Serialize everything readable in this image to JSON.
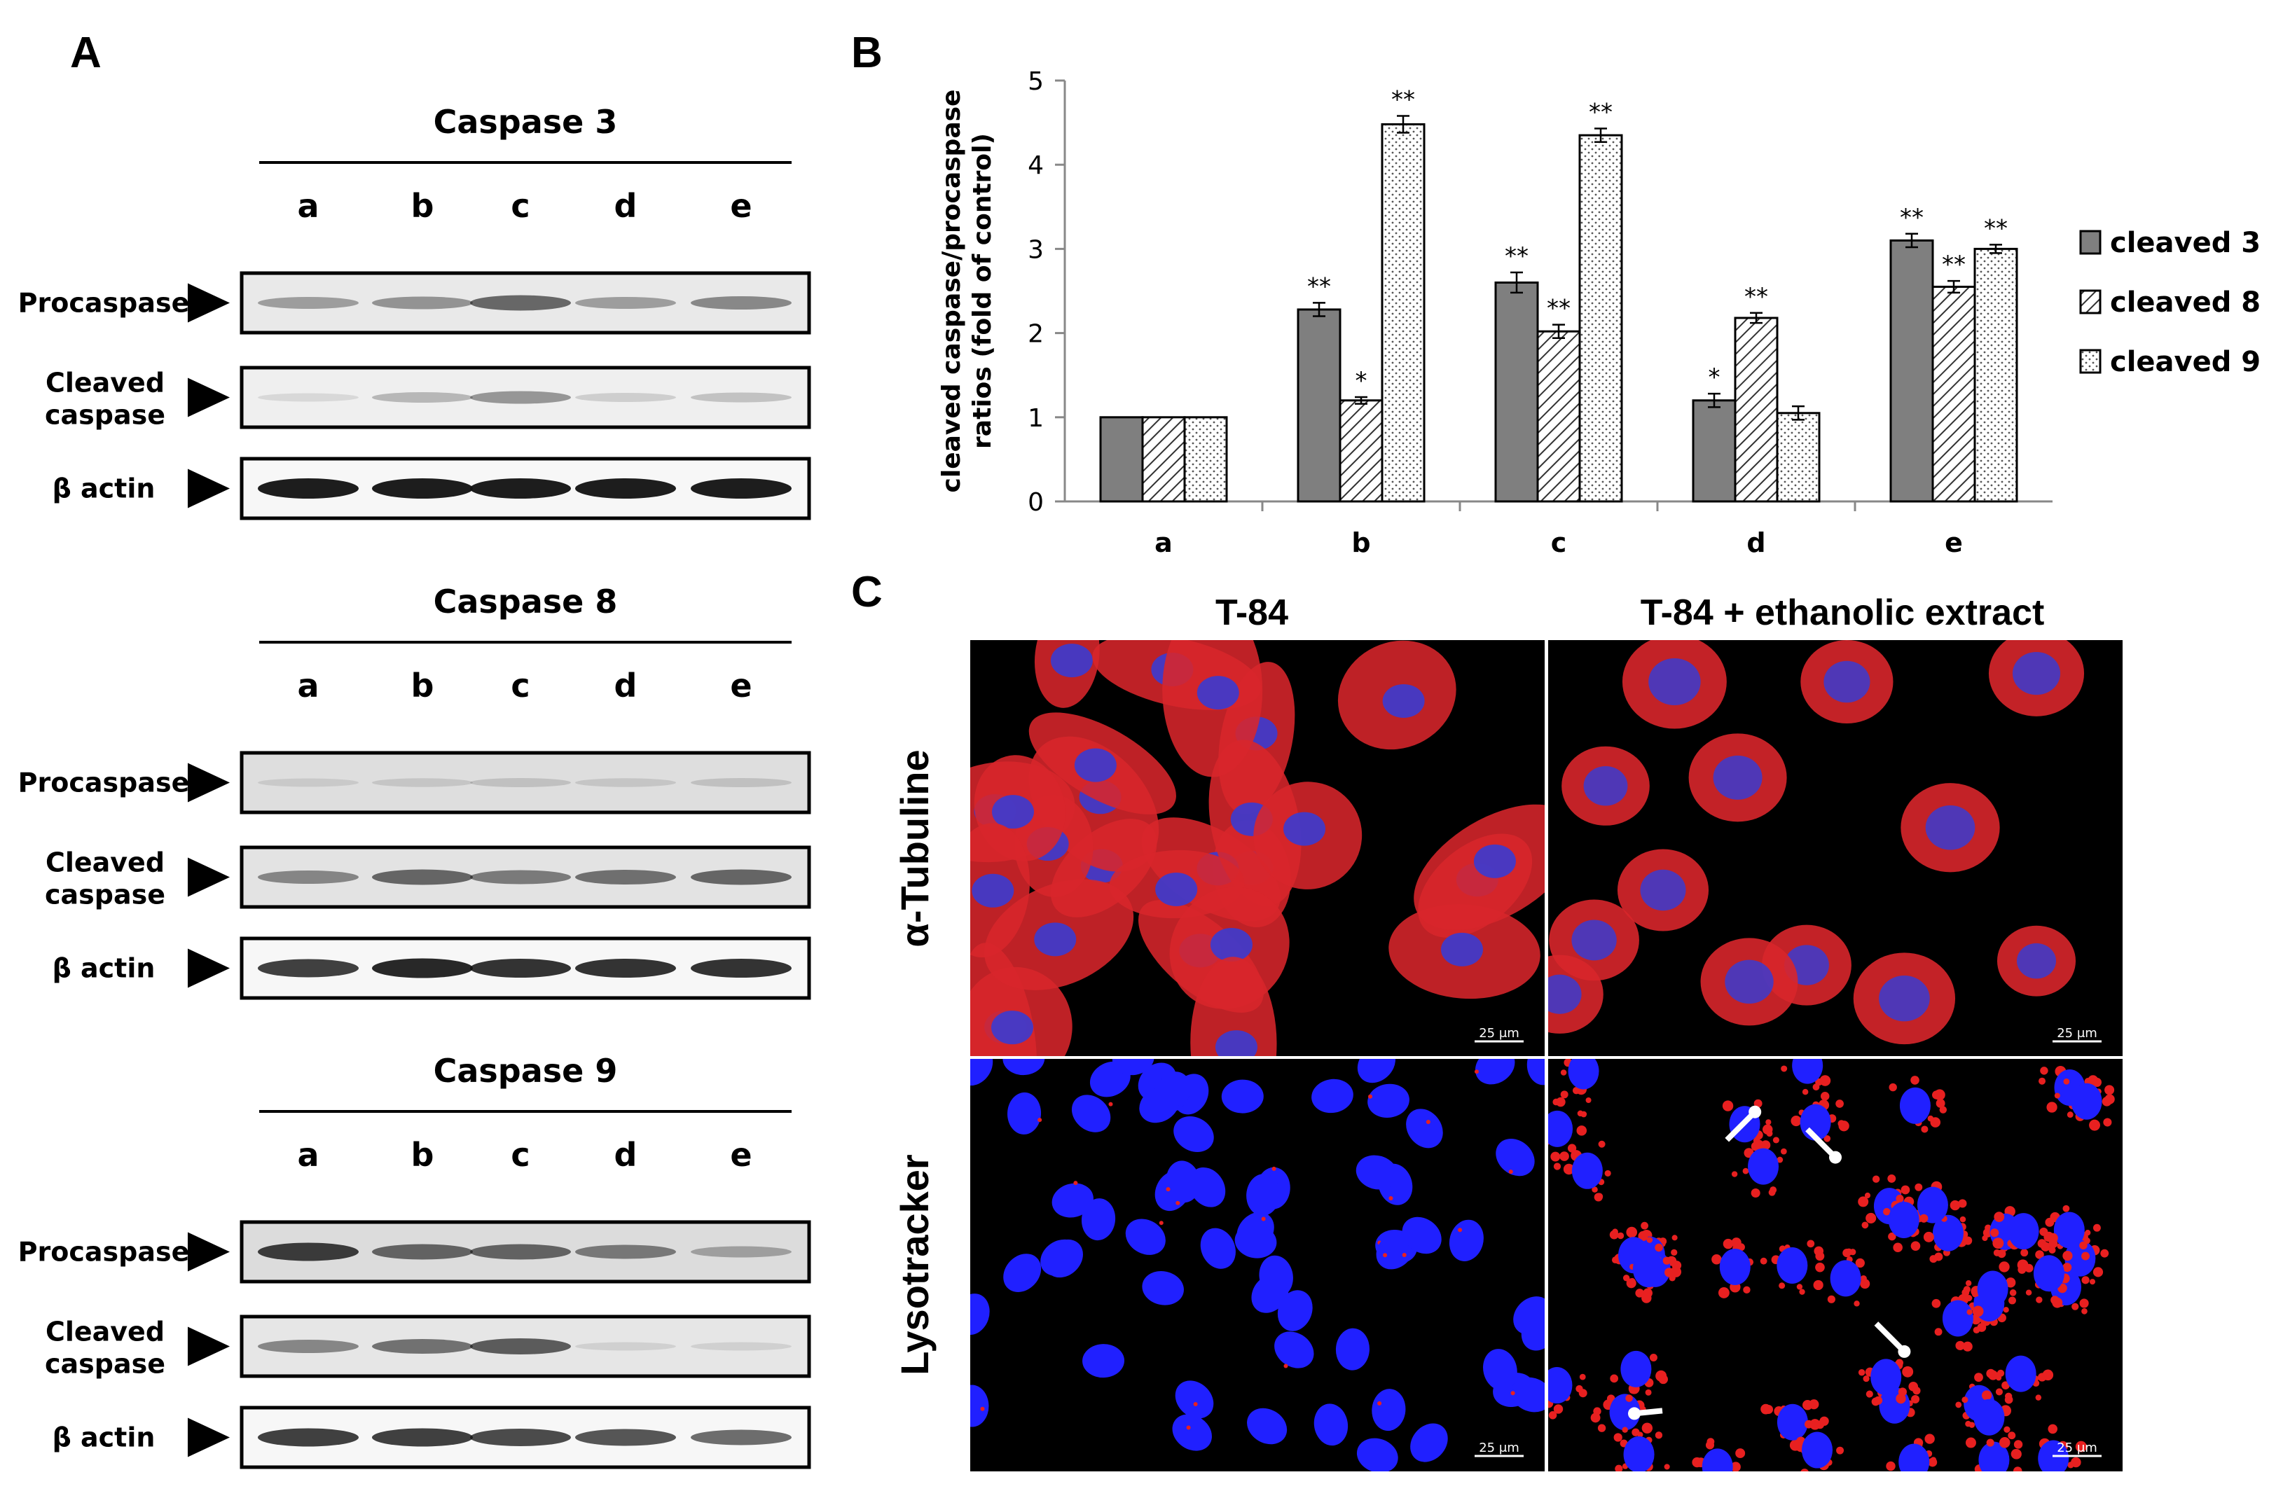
{
  "panels": {
    "a_letter": "A",
    "b_letter": "B",
    "c_letter": "C"
  },
  "blots": [
    {
      "title": "Caspase 3",
      "lanes": [
        "a",
        "b",
        "c",
        "d",
        "e"
      ],
      "rows": [
        {
          "label": "Procaspase",
          "intensity": [
            0.35,
            0.4,
            0.6,
            0.35,
            0.45
          ],
          "bg": "#e9e9e9"
        },
        {
          "label": "Cleaved caspase",
          "intensity": [
            0.1,
            0.25,
            0.4,
            0.15,
            0.2
          ],
          "bg": "#efefef"
        },
        {
          "label": "β actin",
          "intensity": [
            0.95,
            0.95,
            0.95,
            0.95,
            0.95
          ],
          "bg": "#f7f7f7"
        }
      ]
    },
    {
      "title": "Caspase 8",
      "lanes": [
        "a",
        "b",
        "c",
        "d",
        "e"
      ],
      "rows": [
        {
          "label": "Procaspase",
          "intensity": [
            0.1,
            0.12,
            0.15,
            0.12,
            0.15
          ],
          "bg": "#dedede"
        },
        {
          "label": "Cleaved caspase",
          "intensity": [
            0.45,
            0.6,
            0.5,
            0.55,
            0.6
          ],
          "bg": "#e3e3e3"
        },
        {
          "label": "β actin",
          "intensity": [
            0.8,
            0.9,
            0.85,
            0.85,
            0.85
          ],
          "bg": "#f7f7f7"
        }
      ]
    },
    {
      "title": "Caspase 9",
      "lanes": [
        "a",
        "b",
        "c",
        "d",
        "e"
      ],
      "rows": [
        {
          "label": "Procaspase",
          "intensity": [
            0.8,
            0.6,
            0.6,
            0.5,
            0.3
          ],
          "bg": "#dcdcdc"
        },
        {
          "label": "Cleaved caspase",
          "intensity": [
            0.45,
            0.55,
            0.65,
            0.1,
            0.1
          ],
          "bg": "#e6e6e6"
        },
        {
          "label": "β actin",
          "intensity": [
            0.8,
            0.8,
            0.75,
            0.7,
            0.6
          ],
          "bg": "#f7f7f7"
        }
      ]
    }
  ],
  "chart_data": {
    "type": "bar",
    "categories": [
      "a",
      "b",
      "c",
      "d",
      "e"
    ],
    "ylabel": "cleaved caspase/procaspase ratios (fold of control)",
    "ylim": [
      0,
      5
    ],
    "yticks": [
      0,
      1,
      2,
      3,
      4,
      5
    ],
    "series": [
      {
        "name": "cleaved 3",
        "values": [
          1.0,
          2.28,
          2.6,
          1.2,
          3.1
        ],
        "errors": [
          0,
          0.08,
          0.12,
          0.08,
          0.08
        ],
        "sig": [
          "",
          "**",
          "**",
          "*",
          "**"
        ],
        "fill": "#7f7f7f"
      },
      {
        "name": "cleaved 8",
        "values": [
          1.0,
          1.2,
          2.02,
          2.18,
          2.55
        ],
        "errors": [
          0,
          0.04,
          0.08,
          0.06,
          0.07
        ],
        "sig": [
          "",
          "*",
          "**",
          "**",
          "**"
        ],
        "fill": "hatch"
      },
      {
        "name": "cleaved 9",
        "values": [
          1.0,
          4.48,
          4.35,
          1.05,
          3.0
        ],
        "errors": [
          0,
          0.1,
          0.08,
          0.08,
          0.05
        ],
        "sig": [
          "",
          "**",
          "**",
          "",
          "**"
        ],
        "fill": "dots"
      }
    ],
    "legend_position": "right"
  },
  "micrographs": {
    "col_titles": [
      "T-84",
      "T-84 + ethanolic extract"
    ],
    "row_labels": [
      "α-Tubuline",
      "Lysotracker"
    ],
    "scale_label": "25 μm"
  }
}
